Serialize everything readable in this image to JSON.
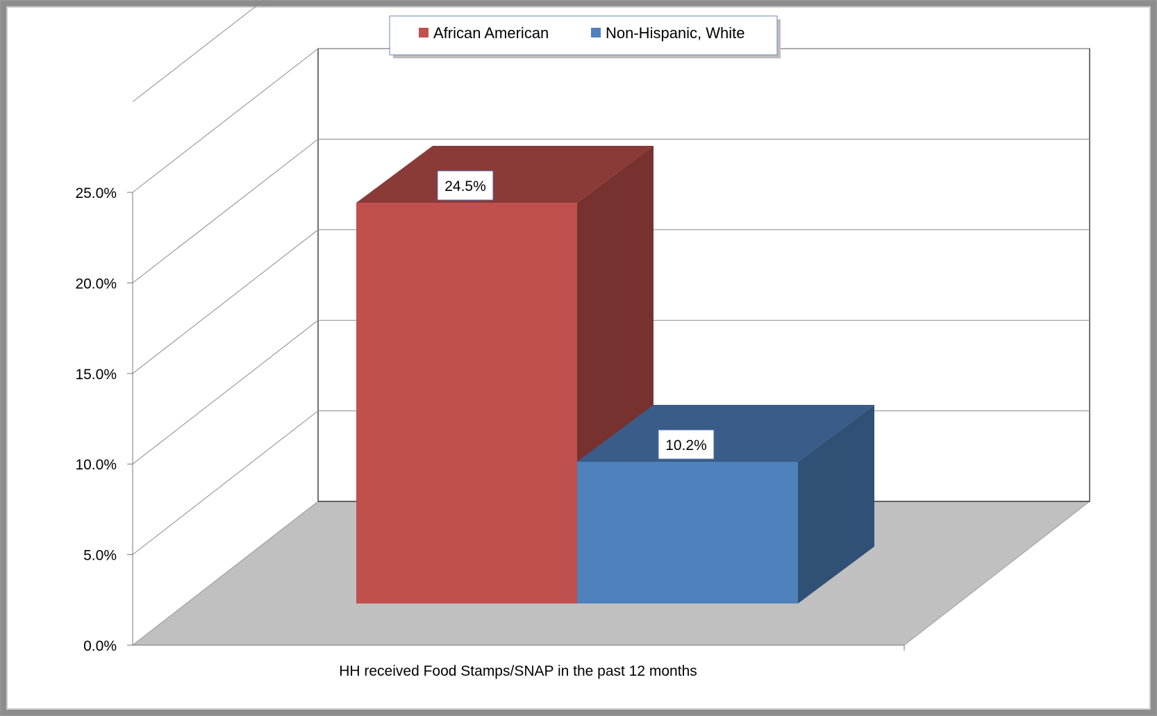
{
  "chart_data": {
    "type": "bar",
    "title": "",
    "xlabel": "",
    "ylabel": "",
    "categories": [
      "HH received Food Stamps/SNAP in the past 12 months"
    ],
    "series": [
      {
        "name": "African American",
        "values": [
          24.5
        ],
        "value_label": "24.5%",
        "color": "#c0504d"
      },
      {
        "name": "Non-Hispanic, White",
        "values": [
          10.2
        ],
        "value_label": "10.2%",
        "color": "#4f81bd"
      }
    ],
    "ylim": [
      0,
      25
    ],
    "y_ticks": [
      "0.0%",
      "5.0%",
      "10.0%",
      "15.0%",
      "20.0%",
      "25.0%"
    ],
    "grid": true,
    "legend_position": "top-center",
    "style": "3d-clustered-column"
  }
}
